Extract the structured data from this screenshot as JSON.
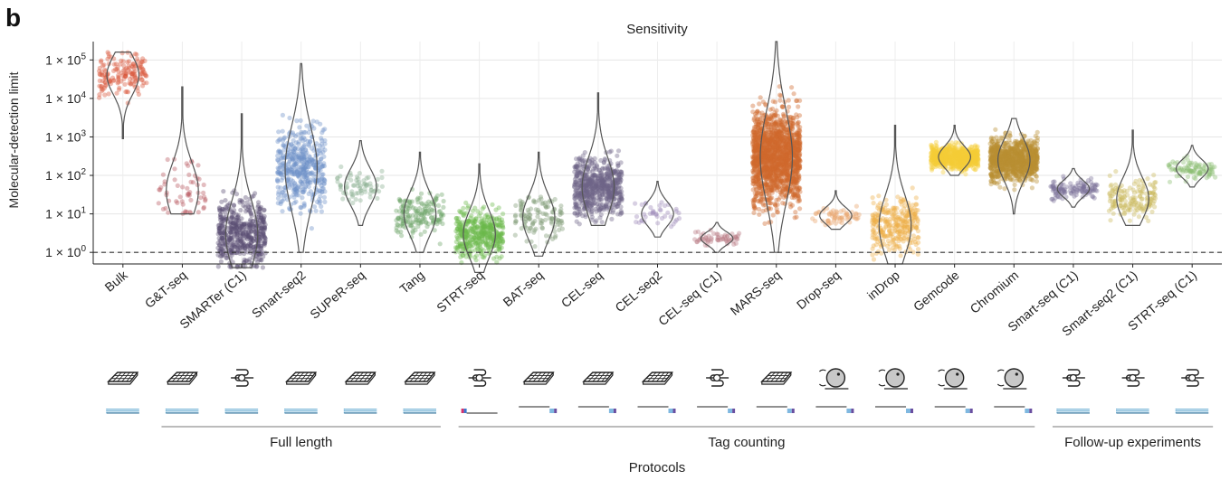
{
  "panel_label": "b",
  "chart_data": {
    "type": "scatter",
    "title": "Sensitivity",
    "ylabel": "Molecular-detection limit",
    "xlabel": "Protocols",
    "y_scale": "log10",
    "ylim": [
      0.5,
      300000
    ],
    "y_ticks": [
      1,
      10,
      100,
      1000,
      10000,
      100000
    ],
    "y_tick_labels": [
      {
        "base": "1 × 10",
        "exp": "0"
      },
      {
        "base": "1 × 10",
        "exp": "1"
      },
      {
        "base": "1 × 10",
        "exp": "2"
      },
      {
        "base": "1 × 10",
        "exp": "3"
      },
      {
        "base": "1 × 10",
        "exp": "4"
      },
      {
        "base": "1 × 10",
        "exp": "5"
      }
    ],
    "reference_line": {
      "y": 1,
      "style": "dashed"
    },
    "grid": true,
    "categories": [
      "Bulk",
      "G&T-seq",
      "SMARTer (C1)",
      "Smart-seq2",
      "SUPeR-seq",
      "Tang",
      "STRT-seq",
      "BAT-seq",
      "CEL-seq",
      "CEL-seq2",
      "CEL-seq (C1)",
      "MARS-seq",
      "Drop-seq",
      "inDrop",
      "Gemcode",
      "Chromium",
      "Smart-seq (C1)",
      "Smart-seq2 (C1)",
      "STRT-seq (C1)"
    ],
    "series": [
      {
        "values": {
          "median": 40000,
          "min": 900,
          "max": 160000,
          "n": 160
        },
        "color": "#d9583b"
      },
      {
        "values": {
          "median": 40,
          "min": 10,
          "max": 20000,
          "n": 60
        },
        "color": "#b85a61"
      },
      {
        "values": {
          "median": 3,
          "min": 0.4,
          "max": 4000,
          "n": 500
        },
        "color": "#5a4e74"
      },
      {
        "values": {
          "median": 150,
          "min": 1,
          "max": 80000,
          "n": 450
        },
        "color": "#6e90c8"
      },
      {
        "values": {
          "median": 50,
          "min": 5,
          "max": 800,
          "n": 70
        },
        "color": "#8aae92"
      },
      {
        "values": {
          "median": 10,
          "min": 1,
          "max": 400,
          "n": 170
        },
        "color": "#6ea46a"
      },
      {
        "values": {
          "median": 3,
          "min": 0.3,
          "max": 200,
          "n": 420
        },
        "color": "#6cb94a"
      },
      {
        "values": {
          "median": 8,
          "min": 0.8,
          "max": 400,
          "n": 120
        },
        "color": "#7f9a76"
      },
      {
        "values": {
          "median": 50,
          "min": 5,
          "max": 14000,
          "n": 650
        },
        "color": "#6e6486"
      },
      {
        "values": {
          "median": 10,
          "min": 2.5,
          "max": 70,
          "n": 40
        },
        "color": "#9d8ab8"
      },
      {
        "values": {
          "median": 2.3,
          "min": 1,
          "max": 6,
          "n": 60
        },
        "color": "#b87a84"
      },
      {
        "values": {
          "median": 300,
          "min": 1,
          "max": 300000,
          "n": 1600
        },
        "color": "#cf6a2c"
      },
      {
        "values": {
          "median": 9,
          "min": 4,
          "max": 40,
          "n": 60
        },
        "color": "#e8a268"
      },
      {
        "values": {
          "median": 5,
          "min": 0.5,
          "max": 2000,
          "n": 300
        },
        "color": "#edae48"
      },
      {
        "values": {
          "median": 300,
          "min": 100,
          "max": 2000,
          "n": 700
        },
        "color": "#f4cc38"
      },
      {
        "values": {
          "median": 250,
          "min": 10,
          "max": 3000,
          "n": 900
        },
        "color": "#b88f32"
      },
      {
        "values": {
          "median": 45,
          "min": 15,
          "max": 150,
          "n": 120
        },
        "color": "#7b7099"
      },
      {
        "values": {
          "median": 25,
          "min": 5,
          "max": 1500,
          "n": 160
        },
        "color": "#cbb85c"
      },
      {
        "values": {
          "median": 150,
          "min": 50,
          "max": 600,
          "n": 90
        },
        "color": "#8dbd72"
      }
    ],
    "platforms": [
      "plate",
      "plate",
      "microfluidic",
      "plate",
      "plate",
      "plate",
      "microfluidic",
      "plate",
      "plate",
      "plate",
      "microfluidic",
      "plate",
      "droplet",
      "droplet",
      "droplet",
      "droplet",
      "microfluidic",
      "microfluidic",
      "microfluidic"
    ],
    "groups": [
      {
        "label": "Full length",
        "from": 1,
        "to": 5
      },
      {
        "label": "Tag counting",
        "from": 6,
        "to": 15
      },
      {
        "label": "Follow-up experiments",
        "from": 16,
        "to": 18
      }
    ]
  }
}
